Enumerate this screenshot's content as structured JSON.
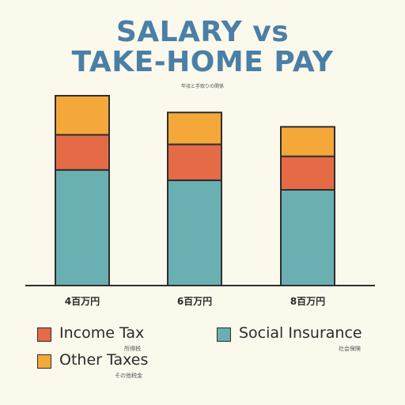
{
  "header": {
    "title_line1": "SALARY vs",
    "title_line2": "TAKE-HOME PAY",
    "subtitle": "年収と手取りの関係"
  },
  "legend": {
    "income_tax": {
      "label": "Income Tax",
      "sublabel": "所得税"
    },
    "social_insurance": {
      "label": "Social Insurance",
      "sublabel": "社会保険"
    },
    "other_taxes": {
      "label": "Other Taxes",
      "sublabel": "その他税金"
    }
  },
  "colors": {
    "background": "#FBF8EC",
    "title": "#4A7FA6",
    "social_insurance": "#6AAFB1",
    "income_tax": "#E56B47",
    "other_taxes": "#F4A83A",
    "outline": "#2E2E2E"
  },
  "chart_data": {
    "type": "bar",
    "stacked": true,
    "categories": [
      "4百万円",
      "6百万円",
      "8百万円"
    ],
    "series": [
      {
        "name": "Social Insurance",
        "values": [
          145,
          132,
          120
        ]
      },
      {
        "name": "Income Tax",
        "values": [
          44,
          45,
          42
        ]
      },
      {
        "name": "Other Taxes",
        "values": [
          49,
          40,
          37
        ]
      }
    ],
    "ylim": [
      0,
      240
    ],
    "grid": false
  }
}
